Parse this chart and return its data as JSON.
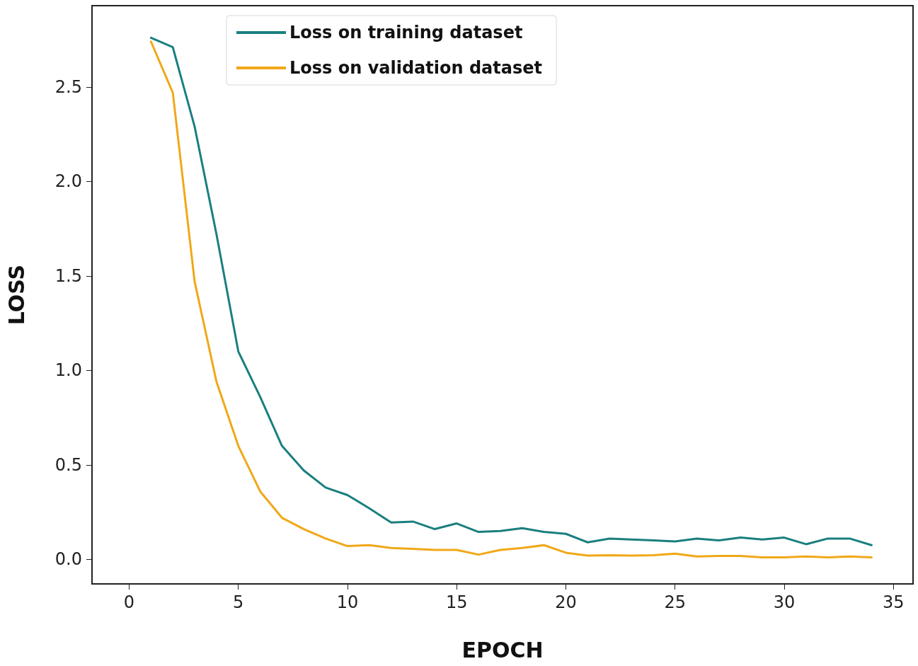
{
  "chart_data": {
    "type": "line",
    "xlabel": "EPOCH",
    "ylabel": "LOSS",
    "xlim": [
      -1.7,
      35.9
    ],
    "xticks": [
      0,
      5,
      10,
      15,
      20,
      25,
      30,
      35
    ],
    "ylim": [
      -0.13,
      2.93
    ],
    "yticks": [
      {
        "value": 0,
        "label": "0.0"
      },
      0.5,
      {
        "value": 1,
        "label": "1.0"
      },
      1.5,
      {
        "value": 2,
        "label": "2.0"
      },
      2.5
    ],
    "grid": false,
    "legend": "top left",
    "marker": "none",
    "line_style": "solid",
    "x": [
      1,
      2,
      3,
      4,
      5,
      6,
      7,
      8,
      9,
      10,
      11,
      12,
      13,
      14,
      15,
      16,
      17,
      18,
      19,
      20,
      21,
      22,
      23,
      24,
      25,
      26,
      27,
      28,
      29,
      30,
      31,
      32,
      33,
      34
    ],
    "series": [
      {
        "name": "Loss on training dataset",
        "color": "#1a7f7f",
        "values": [
          2.76,
          2.71,
          2.29,
          1.72,
          1.1,
          0.86,
          0.6,
          0.47,
          0.38,
          0.34,
          0.27,
          0.195,
          0.2,
          0.16,
          0.19,
          0.145,
          0.15,
          0.165,
          0.145,
          0.135,
          0.09,
          0.11,
          0.105,
          0.1,
          0.095,
          0.11,
          0.1,
          0.115,
          0.105,
          0.115,
          0.08,
          0.11,
          0.11,
          0.075
        ]
      },
      {
        "name": "Loss on validation dataset",
        "color": "#f0a818",
        "values": [
          2.74,
          2.47,
          1.47,
          0.94,
          0.6,
          0.36,
          0.22,
          0.16,
          0.11,
          0.07,
          0.075,
          0.06,
          0.055,
          0.05,
          0.05,
          0.025,
          0.05,
          0.06,
          0.075,
          0.035,
          0.02,
          0.022,
          0.02,
          0.022,
          0.03,
          0.015,
          0.018,
          0.018,
          0.01,
          0.01,
          0.015,
          0.01,
          0.015,
          0.01
        ]
      }
    ]
  }
}
